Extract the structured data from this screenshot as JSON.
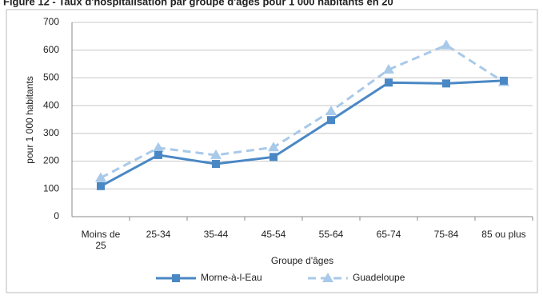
{
  "chart_data": {
    "type": "line",
    "title": "Figure 12 - Taux d'hospitalisation par groupe d'âges pour 1 000 habitants en 20",
    "x_label": "Groupe d'âges",
    "y_label": "pour 1 000 habitants",
    "categories": [
      "Moins de 25",
      "25-34",
      "35-44",
      "45-54",
      "55-64",
      "65-74",
      "75-84",
      "85 ou plus"
    ],
    "series": [
      {
        "name": "Morne-à-l-Eau",
        "color": "#4a88c5",
        "dashed": false,
        "marker": "square",
        "values": [
          110,
          222,
          190,
          215,
          348,
          483,
          480,
          490
        ]
      },
      {
        "name": "Guadeloupe",
        "color": "#a9c9e9",
        "dashed": true,
        "marker": "triangle",
        "values": [
          140,
          248,
          222,
          250,
          380,
          530,
          618,
          485
        ]
      }
    ],
    "ylim": [
      0,
      700
    ],
    "yticks": [
      0,
      100,
      200,
      300,
      400,
      500,
      600,
      700
    ],
    "grid": true
  }
}
